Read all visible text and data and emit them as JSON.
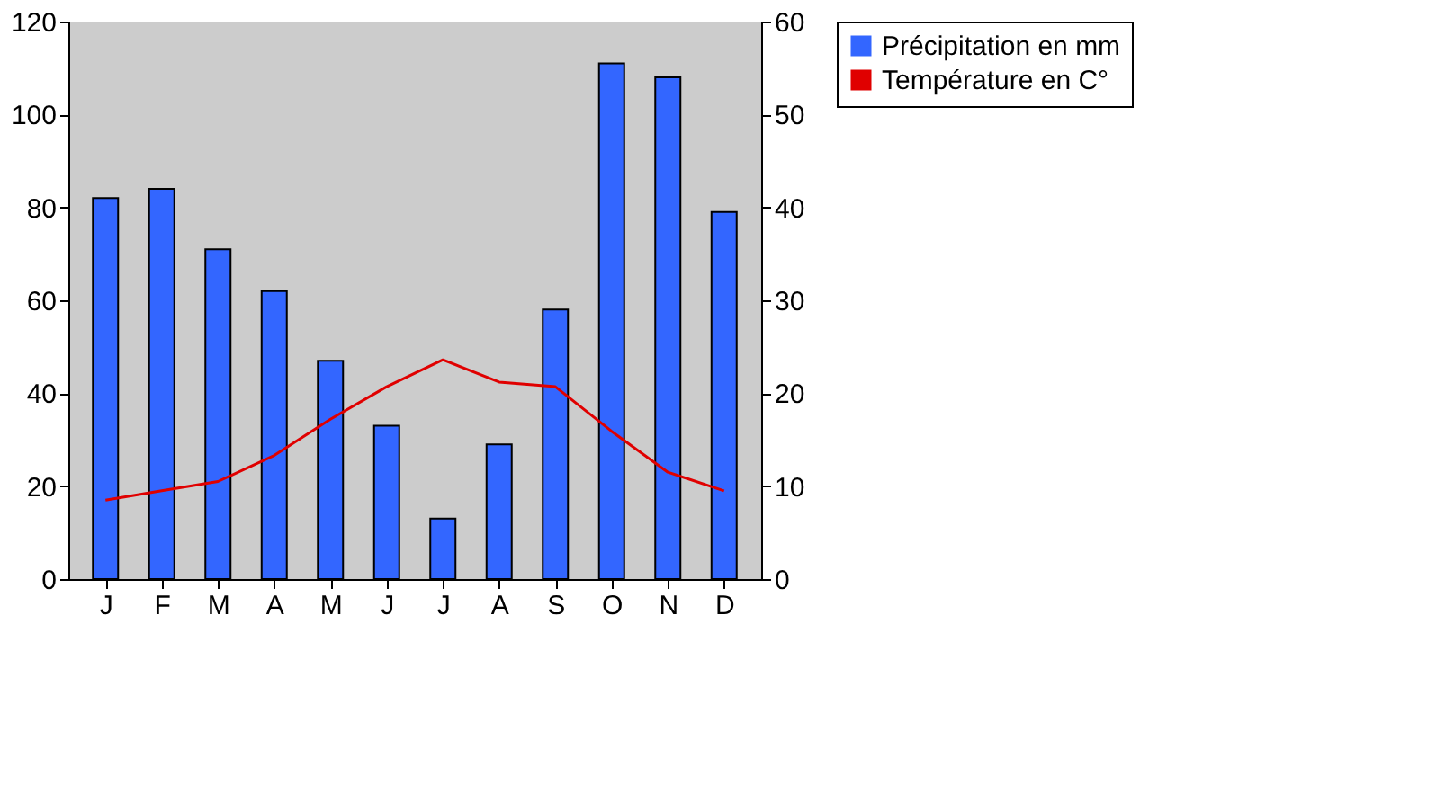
{
  "chart_data": {
    "type": "bar",
    "categories": [
      "J",
      "F",
      "M",
      "A",
      "M",
      "J",
      "J",
      "A",
      "S",
      "O",
      "N",
      "D"
    ],
    "series": [
      {
        "name": "Précipitation en mm",
        "color": "#3366ff",
        "values": [
          82,
          84,
          71,
          62,
          47,
          33,
          13,
          29,
          58,
          111,
          108,
          79
        ]
      },
      {
        "name": "Température en C°",
        "color": "#e00000",
        "type": "line",
        "axis": "y2",
        "values": [
          8.5,
          9.5,
          10.5,
          13.3,
          17.2,
          20.7,
          23.6,
          21.2,
          20.7,
          15.9,
          11.5,
          9.5
        ]
      }
    ],
    "ylim": [
      0,
      120
    ],
    "yticks": [
      0,
      20,
      40,
      60,
      80,
      100,
      120
    ],
    "y2lim": [
      0,
      60
    ],
    "y2ticks": [
      0,
      10,
      20,
      30,
      40,
      50,
      60
    ],
    "grid": false,
    "legend": "right",
    "marker": "none",
    "line_style": "solid"
  }
}
